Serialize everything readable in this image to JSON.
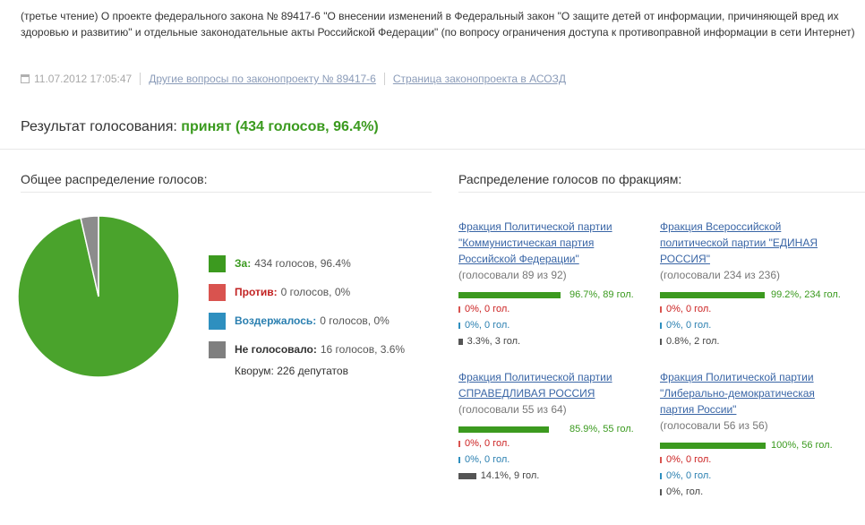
{
  "bill": {
    "title": "(третье чтение) О проекте федерального закона № 89417-6 \"О внесении изменений в Федеральный закон \"О защите детей от информации, причиняющей вред их здоровью и развитию\" и отдельные законодательные акты Российской Федерации\" (по вопросу ограничения доступа к противоправной информации в сети Интернет)",
    "datetime": "11.07.2012 17:05:47",
    "link_other": "Другие вопросы по законопроекту № 89417-6",
    "link_page": "Страница законопроекта в АСОЗД"
  },
  "result": {
    "label": "Результат голосования:",
    "value": "принят (434 голосов, 96.4%)"
  },
  "overall": {
    "heading": "Общее распределение голосов:",
    "legend": [
      {
        "label": "За:",
        "text": "434 голосов, 96.4%",
        "color": "#3c9a1f",
        "label_color": "#3a9a1e"
      },
      {
        "label": "Против:",
        "text": "0 голосов, 0%",
        "color": "#d9534f",
        "label_color": "#c22222"
      },
      {
        "label": "Воздержалось:",
        "text": "0 голосов, 0%",
        "color": "#2e8fbf",
        "label_color": "#2a7fb0"
      },
      {
        "label": "Не голосовало:",
        "text": "16 голосов, 3.6%",
        "color": "#7f7f7f",
        "label_color": "#333333"
      }
    ],
    "quorum": "Кворум: 226 депутатов"
  },
  "factions": {
    "heading": "Распределение голосов по фракциям:",
    "items": [
      {
        "name": "Фракция Политической партии \"Коммунистическая партия Российской Федерации\"",
        "voted": "(голосовали 89 из 92)",
        "for_pct": 96.7,
        "for_text": "96.7%, 89 гол.",
        "against_pct": 0,
        "against_text": "0%, 0 гол.",
        "abstain_pct": 0,
        "abstain_text": "0%, 0 гол.",
        "absent_pct": 3.3,
        "absent_text": "3.3%, 3 гол."
      },
      {
        "name": "Фракция Всероссийской политической партии \"ЕДИНАЯ РОССИЯ\"",
        "voted": "(голосовали 234 из 236)",
        "for_pct": 99.2,
        "for_text": "99.2%, 234 гол.",
        "against_pct": 0,
        "against_text": "0%, 0 гол.",
        "abstain_pct": 0,
        "abstain_text": "0%, 0 гол.",
        "absent_pct": 0.8,
        "absent_text": "0.8%, 2 гол."
      },
      {
        "name": "Фракция Политической партии СПРАВЕДЛИВАЯ РОССИЯ",
        "voted": "(голосовали 55 из 64)",
        "for_pct": 85.9,
        "for_text": "85.9%, 55 гол.",
        "against_pct": 0,
        "against_text": "0%, 0 гол.",
        "abstain_pct": 0,
        "abstain_text": "0%, 0 гол.",
        "absent_pct": 14.1,
        "absent_text": "14.1%, 9 гол."
      },
      {
        "name": "Фракция Политической партии \"Либерально-демократическая партия России\"",
        "voted": "(голосовали 56 из 56)",
        "for_pct": 100,
        "for_text": "100%, 56 гол.",
        "against_pct": 0,
        "against_text": "0%, 0 гол.",
        "abstain_pct": 0,
        "abstain_text": "0%, 0 гол.",
        "absent_pct": 0,
        "absent_text": "0%, гол."
      }
    ]
  },
  "chart_data": {
    "type": "pie",
    "title": "",
    "categories": [
      "За",
      "Против",
      "Воздержалось",
      "Не голосовало"
    ],
    "values": [
      434,
      0,
      0,
      16
    ],
    "percent": [
      96.4,
      0,
      0,
      3.6
    ],
    "colors": [
      "#3c9a1f",
      "#d9534f",
      "#2e8fbf",
      "#7f7f7f"
    ]
  }
}
